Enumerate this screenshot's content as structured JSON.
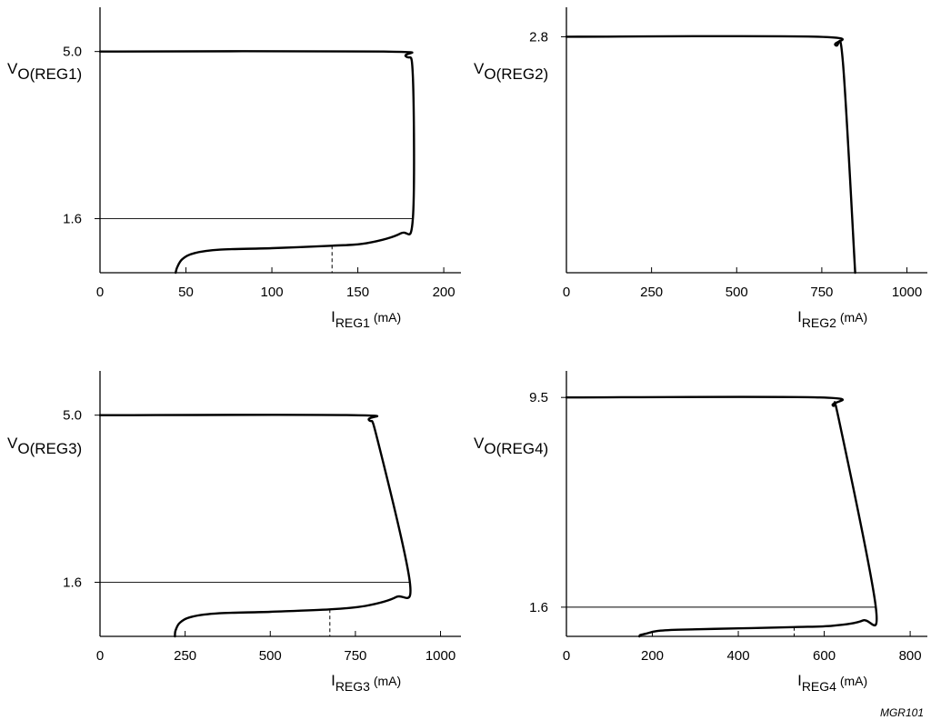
{
  "figure_code": "MGR101",
  "chart_data": [
    {
      "type": "line",
      "ylabel": {
        "main": "V",
        "sub": "O(REG1)"
      },
      "xlabel": {
        "main": "I",
        "sub": "REG1",
        "unit": " (mA)"
      },
      "xlim": [
        0,
        210
      ],
      "ylim": [
        0.5,
        5.9
      ],
      "x_ticks": [
        0,
        50,
        100,
        150,
        200
      ],
      "x_tick_labels": [
        "0",
        "50",
        "100",
        "150",
        "200"
      ],
      "y_ticks": [
        5.0,
        1.6
      ],
      "y_tick_labels": [
        "5.0",
        "1.6"
      ],
      "marker_x": 135,
      "series": [
        {
          "x": [
            0,
            165,
            178,
            182,
            182,
            175,
            155,
            135,
            100,
            70,
            55,
            48,
            45,
            44
          ],
          "y": [
            5.0,
            5.0,
            4.9,
            4.5,
            1.6,
            1.3,
            1.1,
            1.05,
            1.0,
            0.97,
            0.9,
            0.78,
            0.62,
            0.5
          ]
        }
      ]
    },
    {
      "type": "line",
      "ylabel": {
        "main": "V",
        "sub": "O(REG2)"
      },
      "xlabel": {
        "main": "I",
        "sub": "REG2",
        "unit": " (mA)"
      },
      "xlim": [
        0,
        1060
      ],
      "ylim": [
        0,
        3.15
      ],
      "x_ticks": [
        0,
        250,
        500,
        750,
        1000
      ],
      "x_tick_labels": [
        "0",
        "250",
        "500",
        "750",
        "1000"
      ],
      "y_ticks": [
        2.8
      ],
      "y_tick_labels": [
        "2.8"
      ],
      "series": [
        {
          "x": [
            0,
            740,
            790,
            812,
            848
          ],
          "y": [
            2.8,
            2.8,
            2.7,
            2.5,
            0
          ]
        }
      ]
    },
    {
      "type": "line",
      "ylabel": {
        "main": "V",
        "sub": "O(REG3)"
      },
      "xlabel": {
        "main": "I",
        "sub": "REG3",
        "unit": " (mA)"
      },
      "xlim": [
        0,
        1060
      ],
      "ylim": [
        0.5,
        5.9
      ],
      "x_ticks": [
        0,
        250,
        500,
        750,
        1000
      ],
      "x_tick_labels": [
        "0",
        "250",
        "500",
        "750",
        "1000"
      ],
      "y_ticks": [
        5.0,
        1.6
      ],
      "y_tick_labels": [
        "5.0",
        "1.6"
      ],
      "marker_x": 675,
      "series": [
        {
          "x": [
            0,
            745,
            790,
            815,
            910,
            870,
            780,
            675,
            500,
            350,
            270,
            235,
            222,
            220
          ],
          "y": [
            5.0,
            5.0,
            4.9,
            4.5,
            1.6,
            1.3,
            1.12,
            1.05,
            1.0,
            0.97,
            0.9,
            0.78,
            0.62,
            0.5
          ]
        }
      ]
    },
    {
      "type": "line",
      "ylabel": {
        "main": "V",
        "sub": "O(REG4)"
      },
      "xlabel": {
        "main": "I",
        "sub": "REG4",
        "unit": " (mA)"
      },
      "xlim": [
        0,
        840
      ],
      "ylim": [
        0.5,
        10.5
      ],
      "x_ticks": [
        0,
        200,
        400,
        600,
        800
      ],
      "x_tick_labels": [
        "0",
        "200",
        "400",
        "600",
        "800"
      ],
      "y_ticks": [
        9.5,
        1.6
      ],
      "y_tick_labels": [
        "9.5",
        "1.6"
      ],
      "marker_x": 530,
      "series": [
        {
          "x": [
            0,
            590,
            620,
            635,
            720,
            690,
            620,
            530,
            400,
            260,
            210,
            185,
            172,
            170
          ],
          "y": [
            9.5,
            9.5,
            9.2,
            8.6,
            1.6,
            1.1,
            0.9,
            0.85,
            0.8,
            0.75,
            0.7,
            0.6,
            0.55,
            0.5
          ]
        }
      ]
    }
  ]
}
